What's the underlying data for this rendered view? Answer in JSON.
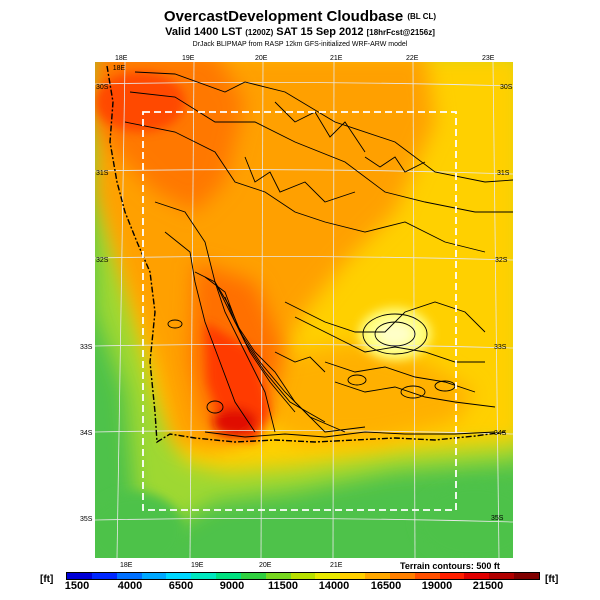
{
  "header": {
    "title_main": "OvercastDevelopment Cloudbase",
    "title_tag": "(BL CL)",
    "valid_prefix": "Valid 1400 LST",
    "valid_utc": "(1200Z)",
    "valid_date": "SAT 15 Sep 2012",
    "forecast_tag": "[18hrFcst@2156z]",
    "credit": "DrJack BLIPMAP from RASP 12km GFS-initialized WRF-ARW model"
  },
  "map": {
    "lon_labels_top": [
      "18E",
      "19E",
      "20E",
      "21E",
      "22E",
      "23E"
    ],
    "lon_labels_bottom": [
      "18E",
      "19E",
      "20E",
      "21E"
    ],
    "lat_labels_left": [
      "30S",
      "31S",
      "32S",
      "33S",
      "34S",
      "35S"
    ],
    "lat_labels_right": [
      "30S",
      "31S",
      "32S",
      "33S",
      "34S",
      "35S"
    ],
    "terrain_note": "Terrain contours: 500 ft"
  },
  "colorbar": {
    "unit_left": "[ft]",
    "unit_right": "[ft]",
    "tick_labels": [
      "1500",
      "4000",
      "6500",
      "9000",
      "11500",
      "14000",
      "16500",
      "19000",
      "21500"
    ],
    "colors": [
      "#0000d8",
      "#0028ff",
      "#0070ff",
      "#00a8ff",
      "#00d8ff",
      "#00e8c0",
      "#00e080",
      "#30d040",
      "#78d820",
      "#b8e000",
      "#e8e800",
      "#ffd000",
      "#ffa800",
      "#ff8000",
      "#ff5000",
      "#ff2000",
      "#e00000",
      "#b00000",
      "#800000"
    ]
  },
  "colors": {
    "field_low": "#4ec24a",
    "field_mid_green": "#9ed830",
    "field_yellow": "#ffe000",
    "field_pale": "#ffff80",
    "field_orange": "#ffa000",
    "field_orange_dark": "#ff7800",
    "field_red": "#ff4000",
    "field_red_dark": "#e01000",
    "grid": "#e8e8e8",
    "coast": "#000000",
    "box": "#ffffff"
  }
}
